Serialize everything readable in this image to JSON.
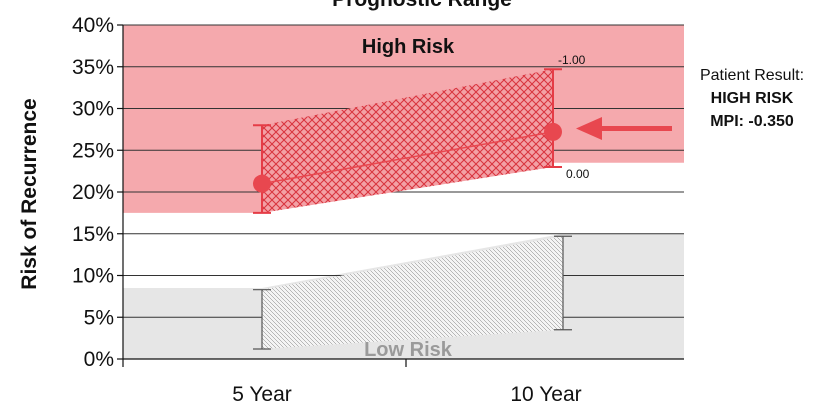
{
  "chart_data": {
    "type": "line",
    "title": "Prognostic Range",
    "ylabel": "Risk of Recurrence",
    "categories": [
      "5 Year",
      "10 Year"
    ],
    "ylim": [
      0,
      40
    ],
    "yticks": [
      "0%",
      "5%",
      "10%",
      "15%",
      "20%",
      "25%",
      "30%",
      "35%",
      "40%"
    ],
    "grid": true,
    "zones": {
      "high": {
        "label": "High Risk",
        "color": "#f5a9ad",
        "from": [
          17.5,
          23.5
        ]
      },
      "low": {
        "label": "Low Risk",
        "color": "#e6e6e6",
        "to": [
          8.5,
          15
        ]
      }
    },
    "high_band": {
      "range_5": [
        17.5,
        28
      ],
      "range_10": [
        23,
        34.7
      ],
      "upper_label": "-1.00",
      "lower_label": "0.00",
      "color": "#e53c46"
    },
    "low_band": {
      "range_5": [
        1.2,
        8.3
      ],
      "range_10": [
        3.5,
        14.7
      ]
    },
    "series": [
      {
        "values": [
          21,
          27.2
        ],
        "color": "#e8474f"
      }
    ],
    "result": {
      "label": "Patient Result:",
      "risk": "HIGH RISK",
      "mpi": "MPI: -0.350"
    }
  }
}
